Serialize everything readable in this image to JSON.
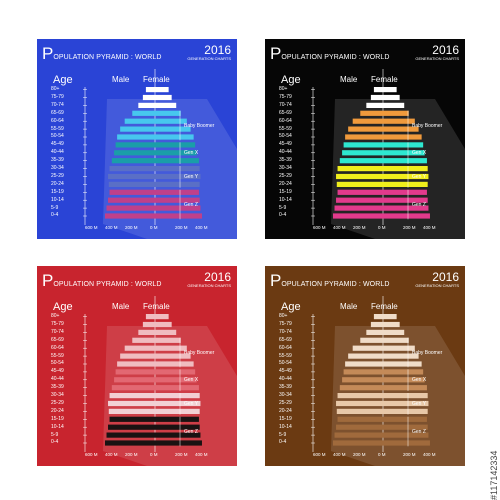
{
  "title_first": "P",
  "title_rest": "OPULATION PYRAMID : WORLD",
  "year": "2016",
  "subtitle": "GENERATION CHARTS",
  "headers": {
    "age": "Age",
    "male": "Male",
    "female": "Female"
  },
  "x_ticks": [
    "600 M",
    "400 M",
    "200 M",
    "0 M",
    "200 M",
    "400 M"
  ],
  "generations": [
    "Baby Boomer",
    "Gen X",
    "Gen Y",
    "Gen Z"
  ],
  "watermark": "#117142334",
  "panels": [
    {
      "name": "blue",
      "bg": "#2a44d6",
      "colors": {
        "default": "#ffffff",
        "boomer": "#47c7ee",
        "genx": "#1a9ea8",
        "geny": "#5a6fc6",
        "genz": "#c0408a"
      }
    },
    {
      "name": "black",
      "bg": "#060606",
      "colors": {
        "default": "#ffffff",
        "boomer": "#f09a3c",
        "genx": "#2ee8d0",
        "geny": "#f0ee1c",
        "genz": "#e23a8c"
      }
    },
    {
      "name": "red",
      "bg": "#c8242e",
      "colors": {
        "default": "#f0bcc0",
        "boomer": "#f0bcc0",
        "genx": "#e26872",
        "geny": "#f2d0d4",
        "genz": "#1a1212"
      }
    },
    {
      "name": "brown",
      "bg": "#6b3a12",
      "colors": {
        "default": "#f0dcc8",
        "boomer": "#f0dcc8",
        "genx": "#c48a58",
        "geny": "#e8c8a8",
        "genz": "#a06a3c"
      }
    }
  ],
  "chart_data": {
    "type": "bar",
    "title": "POPULATION PYRAMID : WORLD",
    "subtitle": "GENERATION CHARTS",
    "xlabel": "",
    "ylabel": "Age",
    "categories": [
      "80+",
      "75-79",
      "70-74",
      "65-69",
      "60-64",
      "55-59",
      "50-54",
      "45-49",
      "40-44",
      "35-39",
      "30-34",
      "25-29",
      "20-24",
      "15-19",
      "10-14",
      "5-9",
      "0-4"
    ],
    "generation_groups": {
      "Baby Boomer": [
        "65-69",
        "60-64",
        "55-59",
        "50-54"
      ],
      "Gen X": [
        "45-49",
        "40-44",
        "35-39"
      ],
      "Gen Y": [
        "30-34",
        "25-29",
        "20-24"
      ],
      "Gen Z": [
        "15-19",
        "10-14",
        "5-9",
        "0-4"
      ]
    },
    "series": [
      {
        "name": "Male",
        "values": [
          60,
          80,
          110,
          150,
          200,
          230,
          250,
          260,
          270,
          285,
          300,
          310,
          305,
          300,
          310,
          320,
          330
        ]
      },
      {
        "name": "Female",
        "values": [
          90,
          110,
          140,
          170,
          210,
          235,
          255,
          265,
          275,
          290,
          295,
          300,
          295,
          290,
          295,
          300,
          310
        ]
      }
    ],
    "xlim": [
      -600,
      600
    ],
    "ylim": [
      0,
      17
    ],
    "grid": false
  }
}
